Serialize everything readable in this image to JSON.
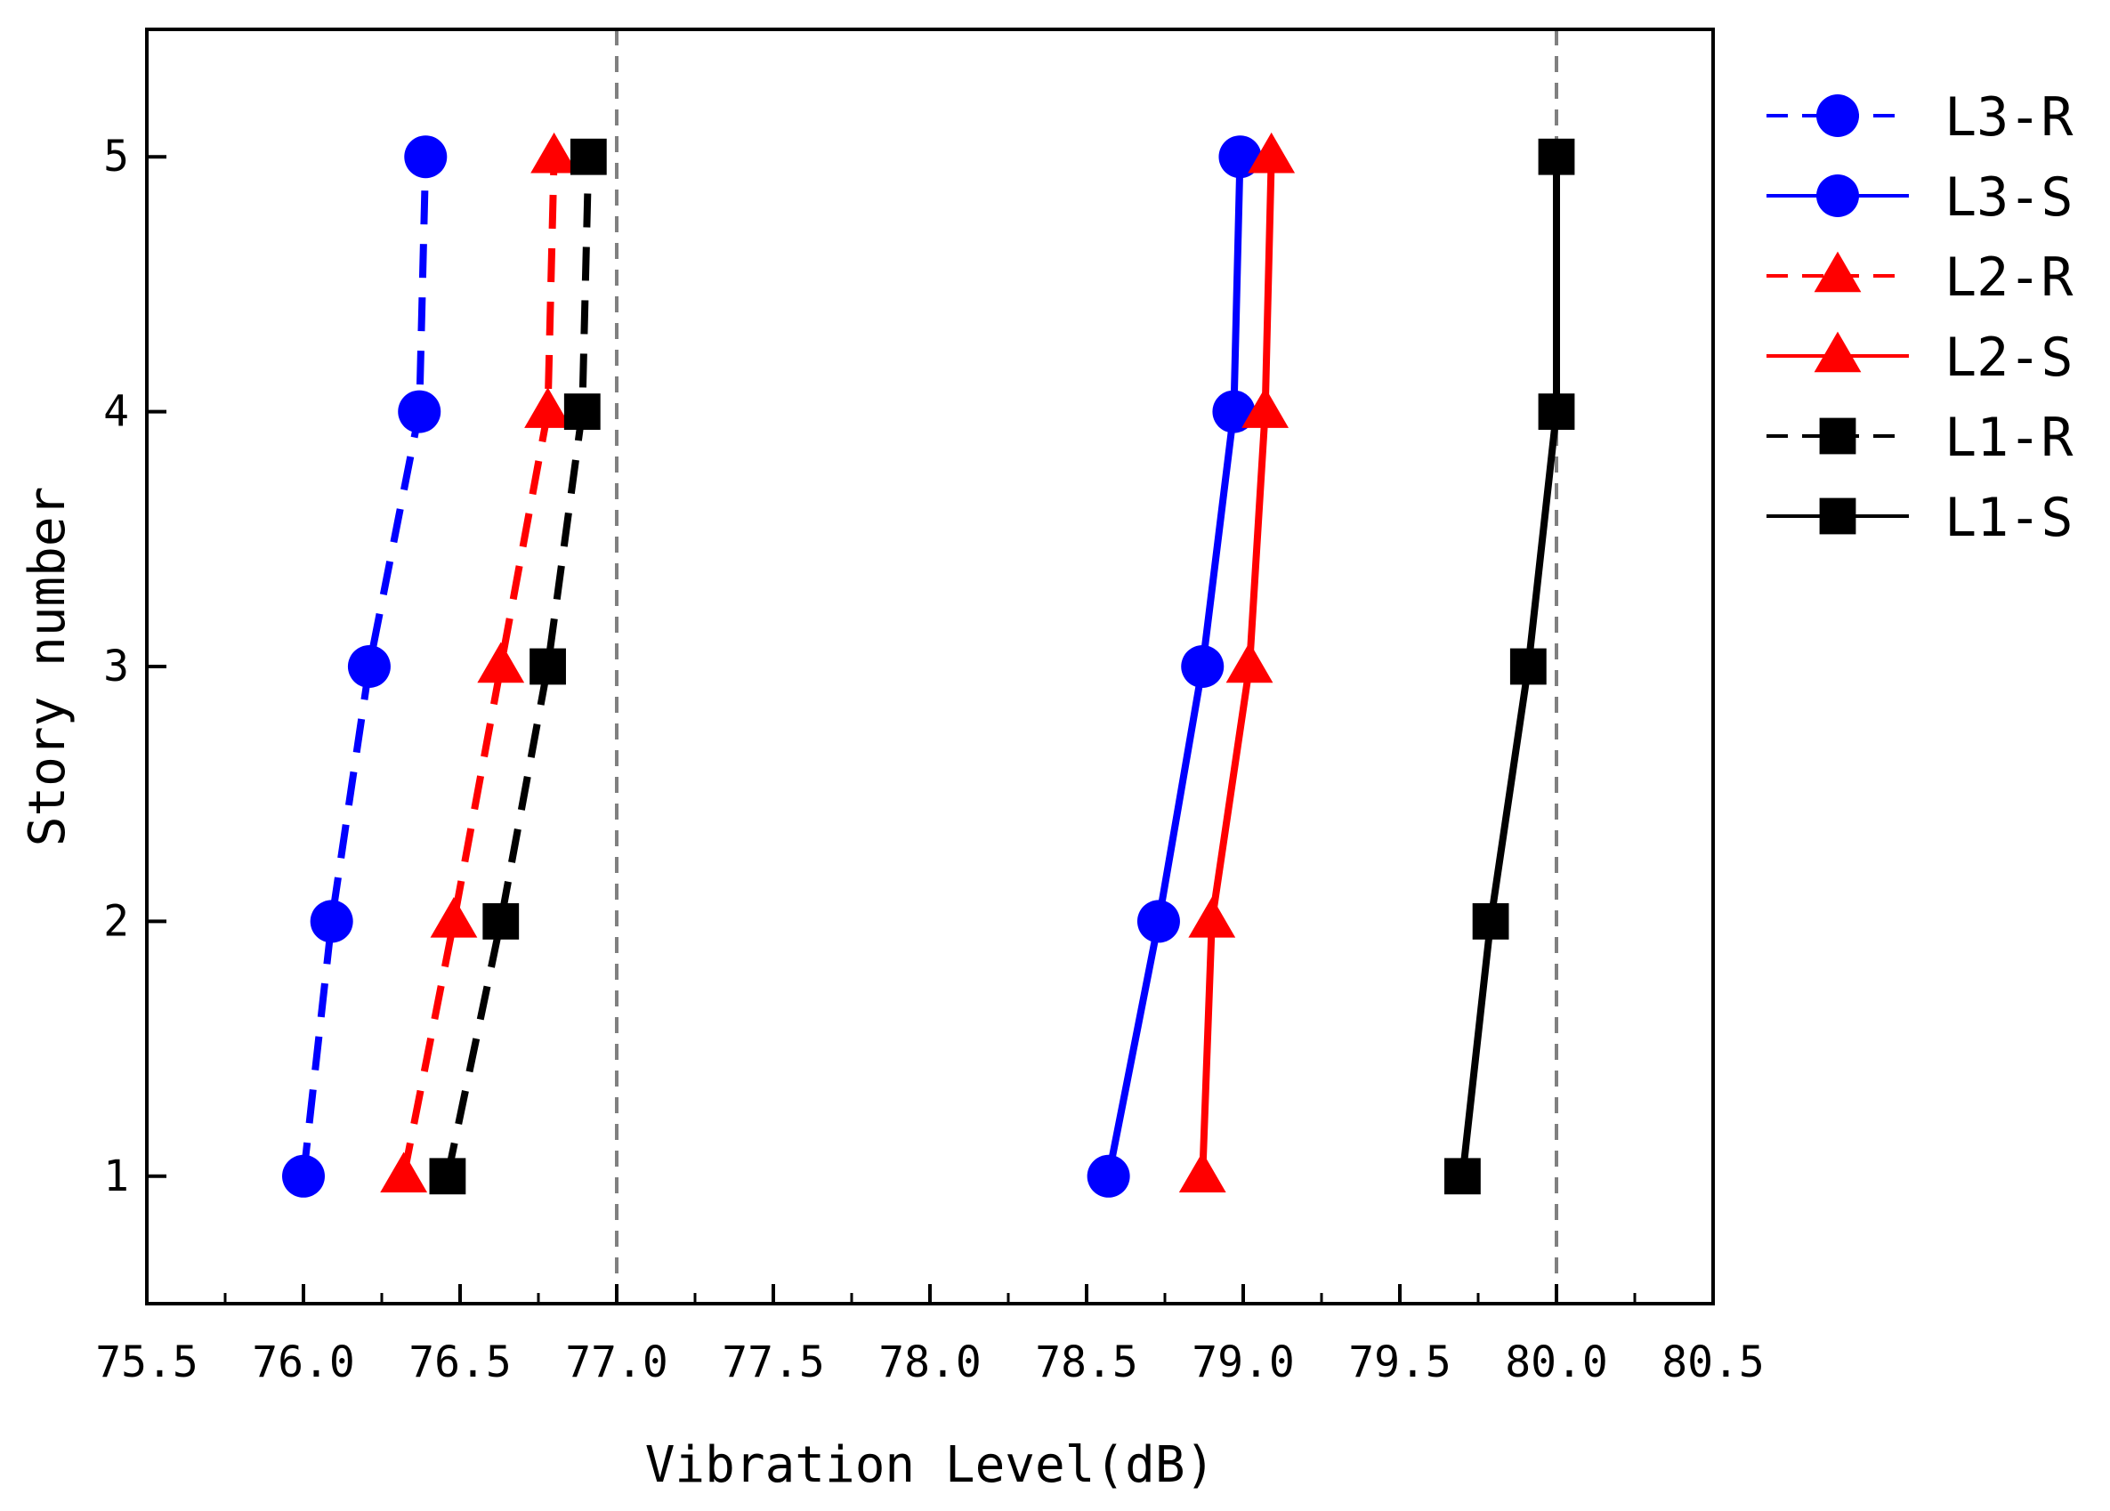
{
  "chart_data": {
    "type": "line",
    "title": "",
    "xlabel": "Vibration Level(dB)",
    "ylabel": "Story number",
    "xlim": [
      75.5,
      80.5
    ],
    "ylim": [
      0.5,
      5.5
    ],
    "x_ticks": [
      "75.5",
      "76.0",
      "76.5",
      "77.0",
      "77.5",
      "78.0",
      "78.5",
      "79.0",
      "79.5",
      "80.0",
      "80.5"
    ],
    "y_ticks": [
      "1",
      "2",
      "3",
      "4",
      "5"
    ],
    "reference_lines_x": [
      77.0,
      80.0
    ],
    "legend_position": "outside-right-top",
    "series": [
      {
        "name": "L3-R",
        "color": "#0000ff",
        "marker": "circle",
        "dash": true,
        "points": [
          [
            76.0,
            1
          ],
          [
            76.09,
            2
          ],
          [
            76.21,
            3
          ],
          [
            76.37,
            4
          ],
          [
            76.39,
            5
          ]
        ]
      },
      {
        "name": "L3-S",
        "color": "#0000ff",
        "marker": "circle",
        "dash": false,
        "points": [
          [
            78.57,
            1
          ],
          [
            78.73,
            2
          ],
          [
            78.87,
            3
          ],
          [
            78.97,
            4
          ],
          [
            78.99,
            5
          ]
        ]
      },
      {
        "name": "L2-R",
        "color": "#ff0000",
        "marker": "triangle",
        "dash": true,
        "points": [
          [
            76.32,
            1
          ],
          [
            76.48,
            2
          ],
          [
            76.63,
            3
          ],
          [
            76.78,
            4
          ],
          [
            76.8,
            5
          ]
        ]
      },
      {
        "name": "L2-S",
        "color": "#ff0000",
        "marker": "triangle",
        "dash": false,
        "points": [
          [
            78.87,
            1
          ],
          [
            78.9,
            2
          ],
          [
            79.02,
            3
          ],
          [
            79.07,
            4
          ],
          [
            79.09,
            5
          ]
        ]
      },
      {
        "name": "L1-R",
        "color": "#000000",
        "marker": "square",
        "dash": true,
        "points": [
          [
            76.46,
            1
          ],
          [
            76.63,
            2
          ],
          [
            76.78,
            3
          ],
          [
            76.89,
            4
          ],
          [
            76.91,
            5
          ]
        ]
      },
      {
        "name": "L1-S",
        "color": "#000000",
        "marker": "square",
        "dash": false,
        "points": [
          [
            79.7,
            1
          ],
          [
            79.79,
            2
          ],
          [
            79.91,
            3
          ],
          [
            80.0,
            4
          ],
          [
            80.0,
            5
          ]
        ]
      }
    ]
  }
}
